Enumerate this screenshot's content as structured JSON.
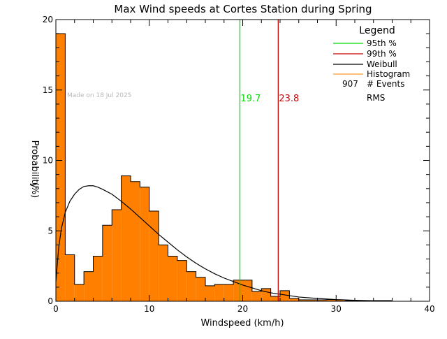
{
  "chart_data": {
    "type": "bar",
    "title": "Max Wind speeds at Cortes Station during Spring",
    "xlabel": "Windspeed (km/h)",
    "ylabel": "Probability",
    "ylabel_unit": "(%)",
    "xlim": [
      0,
      40
    ],
    "ylim": [
      0,
      20
    ],
    "x_ticks": [
      "0",
      "10",
      "20",
      "30",
      "40"
    ],
    "y_ticks": [
      "0",
      "5",
      "10",
      "15",
      "20"
    ],
    "watermark": "Made on 18 Jul 2025",
    "bin_width": 1,
    "histogram": [
      19.0,
      3.3,
      1.2,
      2.1,
      3.2,
      5.4,
      6.5,
      8.9,
      8.5,
      8.1,
      6.4,
      4.0,
      3.2,
      2.9,
      2.1,
      1.7,
      1.1,
      1.2,
      1.2,
      1.5,
      1.5,
      0.7,
      0.9,
      0.35,
      0.75,
      0.2,
      0.1,
      0.1,
      0.1,
      0.12,
      0.1,
      0.05,
      0.05,
      0.05,
      0.05,
      0.05,
      0,
      0,
      0,
      0
    ],
    "weibull": {
      "x": [
        0,
        0.3,
        0.6,
        1,
        1.5,
        2,
        2.5,
        3,
        3.5,
        4,
        4.5,
        5,
        6,
        7,
        8,
        9,
        10,
        11,
        12,
        13,
        14,
        15,
        16,
        17,
        18,
        19,
        20,
        21,
        22,
        23,
        24,
        25,
        26,
        28,
        30,
        32,
        34,
        36
      ],
      "y": [
        1.4,
        3.8,
        5.2,
        6.3,
        7.1,
        7.6,
        7.95,
        8.15,
        8.2,
        8.2,
        8.1,
        7.95,
        7.6,
        7.1,
        6.55,
        5.95,
        5.35,
        4.75,
        4.2,
        3.65,
        3.15,
        2.7,
        2.3,
        1.95,
        1.65,
        1.4,
        1.15,
        0.95,
        0.75,
        0.6,
        0.5,
        0.4,
        0.3,
        0.2,
        0.12,
        0.07,
        0.04,
        0.02
      ]
    },
    "percentile_95": {
      "value": 19.7,
      "label": "19.7",
      "color": "#00dd00"
    },
    "percentile_99": {
      "value": 23.8,
      "label": "23.8",
      "color": "#cc0000"
    },
    "colors": {
      "histogram": "#ff7f00",
      "weibull": "#000000"
    },
    "legend": {
      "title": "Legend",
      "position": "top-right",
      "items": [
        {
          "label": "95th %",
          "color": "#00dd00"
        },
        {
          "label": "99th %",
          "color": "#cc0000"
        },
        {
          "label": "Weibull",
          "color": "#000000"
        },
        {
          "label": "Histogram",
          "color": "#ff9922"
        }
      ],
      "events_count": "907",
      "events_label": "# Events",
      "rms_label": "RMS"
    }
  }
}
